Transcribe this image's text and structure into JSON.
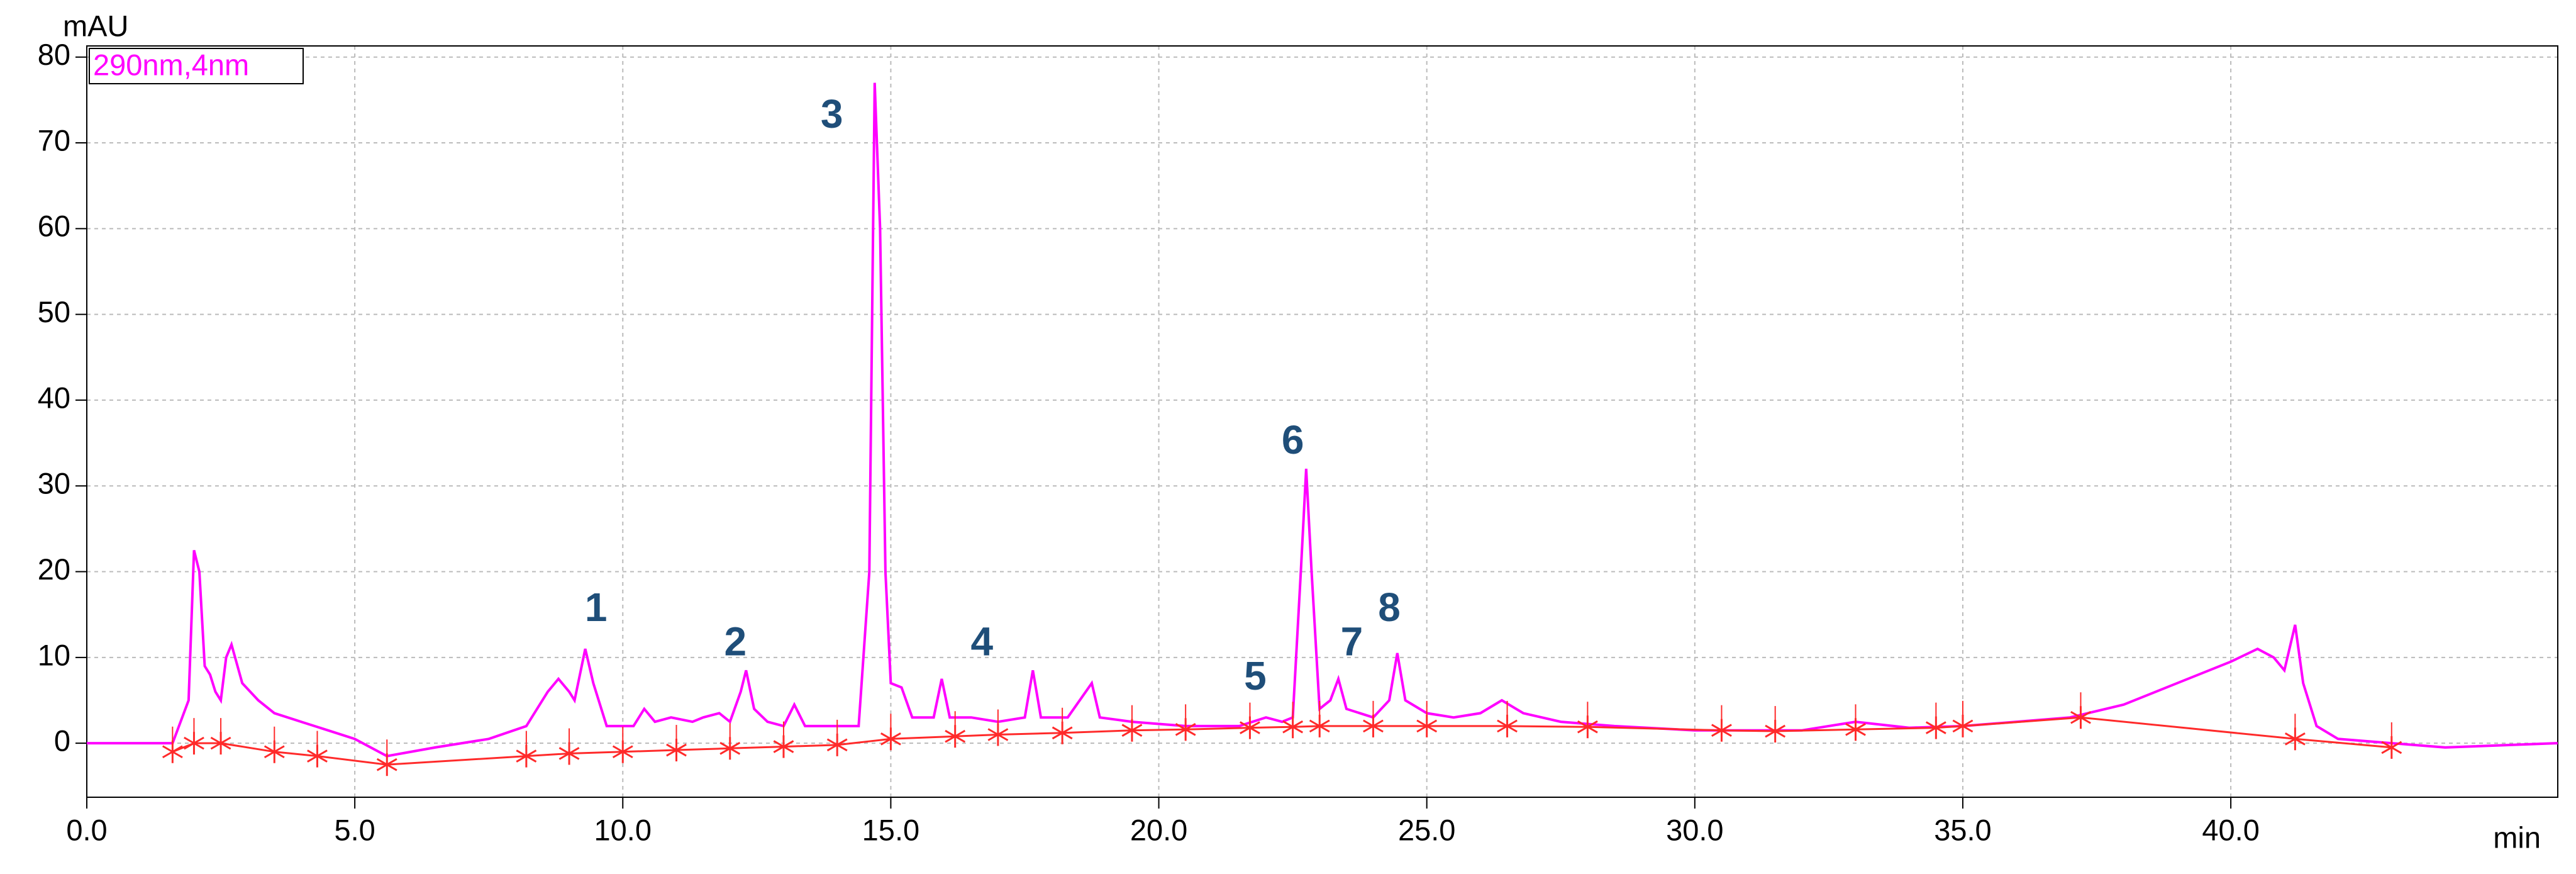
{
  "chart_data": {
    "type": "line",
    "ylabel": "mAU",
    "xlabel": "min",
    "legend": "upper left",
    "grid": true,
    "xlim": [
      0,
      46.1
    ],
    "ylim": [
      -6.3,
      81.3
    ],
    "xticks": [
      {
        "value": 0,
        "label": "0.0"
      },
      {
        "value": 5,
        "label": "5.0"
      },
      {
        "value": 10,
        "label": "10.0"
      },
      {
        "value": 15,
        "label": "15.0"
      },
      {
        "value": 20,
        "label": "20.0"
      },
      {
        "value": 25,
        "label": "25.0"
      },
      {
        "value": 30,
        "label": "30.0"
      },
      {
        "value": 35,
        "label": "35.0"
      },
      {
        "value": 40,
        "label": "40.0"
      }
    ],
    "yticks": [
      0,
      10,
      20,
      30,
      40,
      50,
      60,
      70,
      80
    ],
    "series": [
      {
        "name": "290nm,4nm",
        "color": "#ff00ff",
        "x": [
          0,
          1.6,
          1.9,
          2.0,
          2.1,
          2.2,
          2.3,
          2.4,
          2.5,
          2.6,
          2.7,
          2.9,
          3.2,
          3.5,
          4.0,
          4.5,
          5.0,
          5.6,
          6.5,
          7.5,
          8.2,
          8.6,
          8.8,
          9.0,
          9.1,
          9.3,
          9.45,
          9.7,
          10.2,
          10.4,
          10.6,
          10.9,
          11.3,
          11.5,
          11.8,
          12.0,
          12.2,
          12.3,
          12.45,
          12.7,
          13.0,
          13.2,
          13.4,
          14.0,
          14.4,
          14.6,
          14.7,
          14.8,
          14.9,
          15.0,
          15.2,
          15.4,
          15.8,
          15.95,
          16.1,
          16.5,
          17.0,
          17.5,
          17.65,
          17.8,
          18.3,
          18.75,
          18.9,
          19.5,
          20.5,
          21.5,
          22.0,
          22.3,
          22.5,
          22.65,
          22.75,
          22.85,
          23.0,
          23.2,
          23.35,
          23.5,
          24.0,
          24.3,
          24.45,
          24.6,
          25.0,
          25.5,
          26.0,
          26.4,
          26.8,
          27.5,
          28.5,
          30,
          32,
          33,
          34,
          35,
          36,
          37,
          38,
          39,
          40,
          40.5,
          40.8,
          41.0,
          41.2,
          41.35,
          41.6,
          42,
          43,
          44,
          46.1
        ],
        "y": [
          0,
          0,
          5,
          22.5,
          20,
          9,
          8,
          6,
          5,
          10,
          11.5,
          7,
          5,
          3.5,
          2.5,
          1.5,
          0.5,
          -1.5,
          -0.5,
          0.5,
          2,
          6,
          7.5,
          6,
          5,
          11,
          7,
          2,
          2,
          4,
          2.5,
          3,
          2.5,
          3,
          3.5,
          2.5,
          6,
          8.5,
          4,
          2.5,
          2,
          4.5,
          2,
          2,
          2,
          20,
          77,
          60,
          20,
          7,
          6.5,
          3,
          3,
          7.5,
          3,
          3,
          2.5,
          3,
          8.5,
          3,
          3,
          7,
          3,
          2.5,
          2,
          2,
          3,
          2.5,
          3,
          20,
          32,
          20,
          4,
          5,
          7.5,
          4,
          3,
          5,
          10.5,
          5,
          3.5,
          3,
          3.5,
          5,
          3.5,
          2.5,
          2,
          1.5,
          1.5,
          2.5,
          1.8,
          2,
          2.5,
          3,
          4.5,
          7,
          9.5,
          11,
          10,
          8.5,
          13.8,
          7,
          2,
          0.5,
          0,
          -0.5,
          0
        ]
      },
      {
        "color": "#ff2a2a",
        "marker": "asterisk",
        "x": [
          1.6,
          2.0,
          2.5,
          3.5,
          4.3,
          5.6,
          8.2,
          9.0,
          10.0,
          11.0,
          12.0,
          13.0,
          14.0,
          15.0,
          16.2,
          17.0,
          18.2,
          19.5,
          20.5,
          21.7,
          22.5,
          23.0,
          24.0,
          25.0,
          26.5,
          28.0,
          30.5,
          31.5,
          33.0,
          34.5,
          35.0,
          37.2,
          41.2,
          43.0
        ],
        "y": [
          -1,
          0,
          0,
          -1,
          -1.5,
          -2.5,
          -1.5,
          -1.2,
          -1,
          -0.8,
          -0.6,
          -0.4,
          -0.2,
          0.5,
          0.8,
          1,
          1.2,
          1.5,
          1.6,
          1.8,
          1.9,
          2,
          2,
          2,
          2,
          1.9,
          1.5,
          1.4,
          1.6,
          1.8,
          2,
          3,
          0.5,
          -0.5
        ]
      }
    ],
    "annotations": [
      {
        "text": "1",
        "x": 9.5,
        "y": 15.5
      },
      {
        "text": "2",
        "x": 12.1,
        "y": 11.5
      },
      {
        "text": "3",
        "x": 13.9,
        "y": 73
      },
      {
        "text": "4",
        "x": 16.7,
        "y": 11.5
      },
      {
        "text": "5",
        "x": 21.8,
        "y": 7.5
      },
      {
        "text": "6",
        "x": 22.5,
        "y": 35
      },
      {
        "text": "7",
        "x": 23.6,
        "y": 11.5
      },
      {
        "text": "8",
        "x": 24.3,
        "y": 15.5
      }
    ]
  }
}
